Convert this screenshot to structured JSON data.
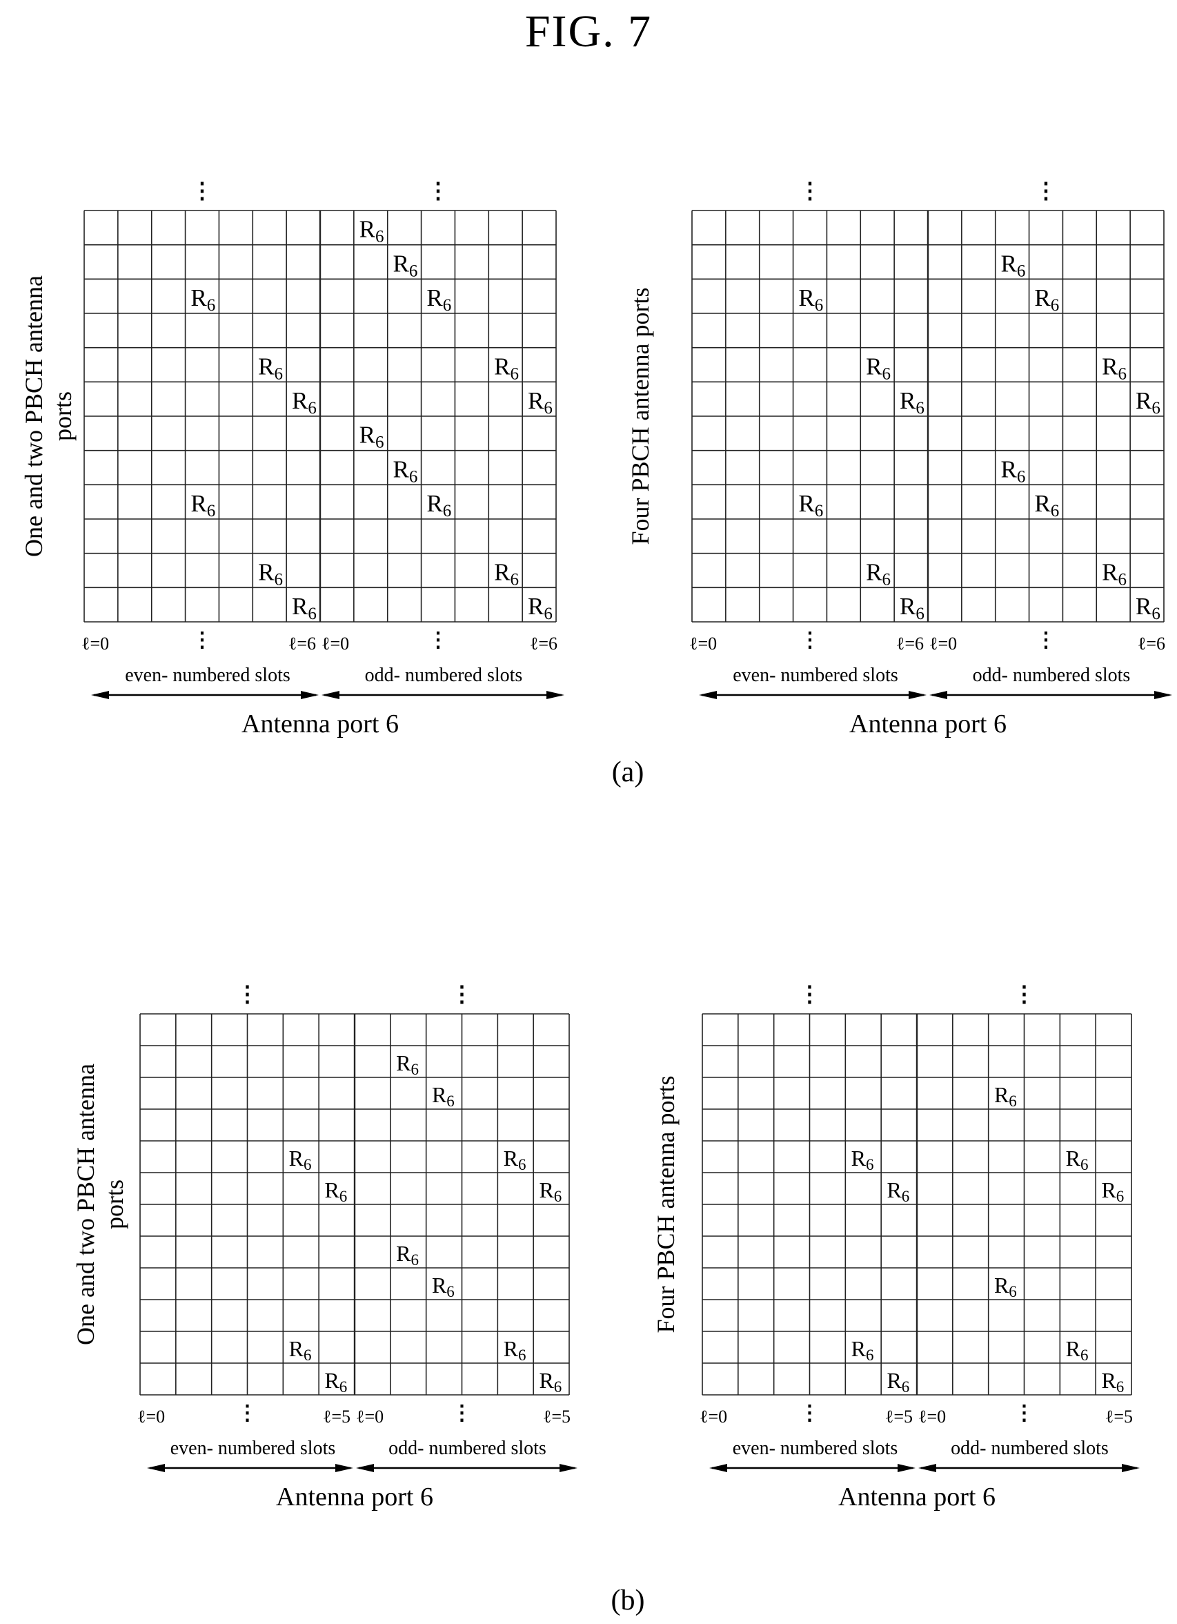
{
  "figure_title": "FIG. 7",
  "reference_symbol": {
    "letter": "R",
    "subscript": "6"
  },
  "panels": [
    {
      "id": "a",
      "caption": "(a)",
      "diagrams": [
        {
          "side_label_lines": [
            "One and two PBCH antenna",
            "ports"
          ],
          "cols_per_slot": 7,
          "rows": 12,
          "start_label": "ℓ=0",
          "end_label": "ℓ=6",
          "even_slots_label": "even- numbered slots",
          "odd_slots_label": "odd- numbered slots",
          "port_label": "Antenna port 6",
          "vdots": "⋮",
          "ref_cells": [
            [
              0,
              8
            ],
            [
              1,
              9
            ],
            [
              2,
              3
            ],
            [
              2,
              10
            ],
            [
              4,
              5
            ],
            [
              4,
              12
            ],
            [
              5,
              6
            ],
            [
              5,
              13
            ],
            [
              6,
              8
            ],
            [
              7,
              9
            ],
            [
              8,
              3
            ],
            [
              8,
              10
            ],
            [
              10,
              5
            ],
            [
              10,
              12
            ],
            [
              11,
              6
            ],
            [
              11,
              13
            ]
          ]
        },
        {
          "side_label_lines": [
            "Four PBCH antenna ports"
          ],
          "cols_per_slot": 7,
          "rows": 12,
          "start_label": "ℓ=0",
          "end_label": "ℓ=6",
          "even_slots_label": "even- numbered slots",
          "odd_slots_label": "odd- numbered slots",
          "port_label": "Antenna port 6",
          "vdots": "⋮",
          "ref_cells": [
            [
              1,
              9
            ],
            [
              2,
              3
            ],
            [
              2,
              10
            ],
            [
              4,
              5
            ],
            [
              4,
              12
            ],
            [
              5,
              6
            ],
            [
              5,
              13
            ],
            [
              7,
              9
            ],
            [
              8,
              3
            ],
            [
              8,
              10
            ],
            [
              10,
              5
            ],
            [
              10,
              12
            ],
            [
              11,
              6
            ],
            [
              11,
              13
            ]
          ]
        }
      ]
    },
    {
      "id": "b",
      "caption": "(b)",
      "diagrams": [
        {
          "side_label_lines": [
            "One and two PBCH antenna",
            "ports"
          ],
          "cols_per_slot": 6,
          "rows": 12,
          "start_label": "ℓ=0",
          "end_label": "ℓ=5",
          "even_slots_label": "even- numbered slots",
          "odd_slots_label": "odd- numbered slots",
          "port_label": "Antenna port 6",
          "vdots": "⋮",
          "ref_cells": [
            [
              1,
              7
            ],
            [
              2,
              8
            ],
            [
              4,
              4
            ],
            [
              4,
              10
            ],
            [
              5,
              5
            ],
            [
              5,
              11
            ],
            [
              7,
              7
            ],
            [
              8,
              8
            ],
            [
              10,
              4
            ],
            [
              10,
              10
            ],
            [
              11,
              5
            ],
            [
              11,
              11
            ]
          ]
        },
        {
          "side_label_lines": [
            "Four PBCH antenna ports"
          ],
          "cols_per_slot": 6,
          "rows": 12,
          "start_label": "ℓ=0",
          "end_label": "ℓ=5",
          "even_slots_label": "even- numbered slots",
          "odd_slots_label": "odd- numbered slots",
          "port_label": "Antenna port 6",
          "vdots": "⋮",
          "ref_cells": [
            [
              2,
              8
            ],
            [
              4,
              4
            ],
            [
              4,
              10
            ],
            [
              5,
              5
            ],
            [
              5,
              11
            ],
            [
              8,
              8
            ],
            [
              10,
              4
            ],
            [
              10,
              10
            ],
            [
              11,
              5
            ],
            [
              11,
              11
            ]
          ]
        }
      ]
    }
  ]
}
